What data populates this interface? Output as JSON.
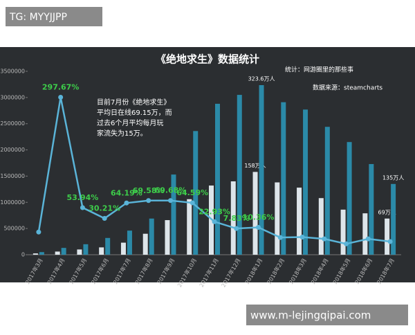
{
  "watermark_top": "TG: MYYJJPP",
  "watermark_bottom": "www.m-lejingqipai.com",
  "chart_data": {
    "type": "bar",
    "title": "《绝地求生》数据统计",
    "credit": "统计：网游圈里的那些事",
    "source": "数据来源：steamcharts",
    "note": [
      "目前7月份《绝地求生》",
      "平均日在线69.15万，而",
      "过去6个月平均每月玩",
      "家流失为15万。"
    ],
    "categories": [
      "2017年3月",
      "2017年4月",
      "2017年5月",
      "2017年6月",
      "2017年7月",
      "2017年8月",
      "2017年9月",
      "2017年10月",
      "2017年11月",
      "2017年12月",
      "2018年1月",
      "2018年2月",
      "2018年3月",
      "2018年4月",
      "2018年5月",
      "2018年6月",
      "2018年7月"
    ],
    "ylim": [
      0,
      3500000
    ],
    "yticks": [
      0,
      500000,
      1000000,
      1500000,
      2000000,
      2500000,
      3000000,
      3500000
    ],
    "y2lim": [
      -50,
      355
    ],
    "series": [
      {
        "type": "bar",
        "color": "#dde5ea",
        "values": [
          25000,
          60000,
          100000,
          140000,
          230000,
          400000,
          660000,
          1060000,
          1320000,
          1400000,
          1580000,
          1380000,
          1280000,
          1080000,
          860000,
          790000,
          690000
        ],
        "value_labels": [
          null,
          null,
          null,
          null,
          null,
          null,
          null,
          null,
          null,
          null,
          "158万人",
          null,
          null,
          null,
          null,
          null,
          "69万人"
        ]
      },
      {
        "type": "bar",
        "color": "#2b8aa8",
        "values": [
          50000,
          130000,
          200000,
          320000,
          460000,
          690000,
          1530000,
          2360000,
          2880000,
          3050000,
          3236000,
          2910000,
          2770000,
          2440000,
          2150000,
          1730000,
          1350000
        ],
        "value_labels": [
          null,
          null,
          null,
          null,
          null,
          null,
          null,
          null,
          null,
          null,
          "323.6万人",
          null,
          null,
          null,
          null,
          null,
          "135万人"
        ]
      },
      {
        "type": "line",
        "axis": "y2",
        "color": "#5ab4d8",
        "label_color": "#3dcc4a",
        "values": [
          0,
          297.67,
          53.94,
          30.21,
          64.19,
          69.58,
          69.68,
          64.59,
          22.93,
          7.83,
          10.36,
          -12,
          -11,
          -15,
          -26,
          -15,
          -21
        ],
        "value_labels": [
          null,
          "297.67%",
          "53.94%",
          "30.21%",
          "64.19%",
          "69.58%",
          "69.68%",
          "64.59%",
          "22.93%",
          "7.83%",
          "10.36%",
          null,
          null,
          null,
          null,
          null,
          null
        ]
      }
    ]
  }
}
